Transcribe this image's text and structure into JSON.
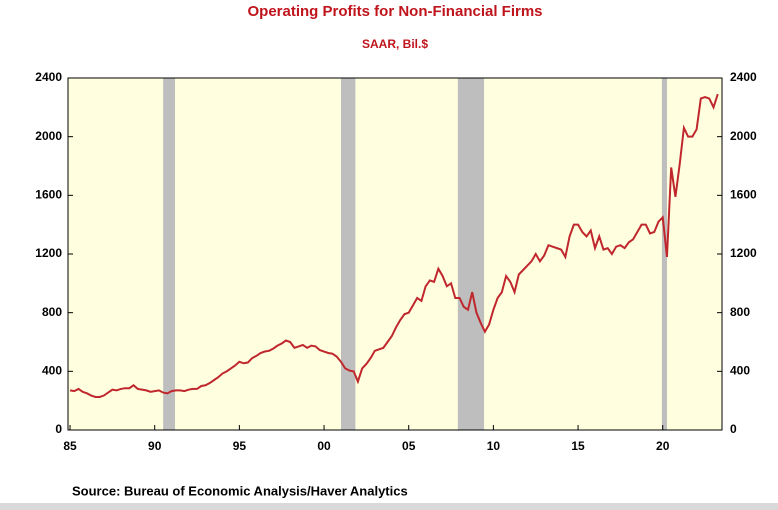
{
  "chart_data": {
    "type": "line",
    "title": "Operating Profits for Non-Financial Firms",
    "subtitle": "SAAR, Bil.$",
    "source": "Source:  Bureau of Economic Analysis/Haver Analytics",
    "xlim": [
      1984.88,
      2023.5
    ],
    "xticks": [
      {
        "value": 1985,
        "label": "85"
      },
      {
        "value": 1990,
        "label": "90"
      },
      {
        "value": 1995,
        "label": "95"
      },
      {
        "value": 2000,
        "label": "00"
      },
      {
        "value": 2005,
        "label": "05"
      },
      {
        "value": 2010,
        "label": "10"
      },
      {
        "value": 2015,
        "label": "15"
      },
      {
        "value": 2020,
        "label": "20"
      }
    ],
    "ylim": [
      0,
      2400
    ],
    "yticks": [
      0,
      400,
      800,
      1200,
      1600,
      2000,
      2400
    ],
    "y2lim": [
      0,
      2400
    ],
    "y2ticks": [
      0,
      400,
      800,
      1200,
      1600,
      2000,
      2400
    ],
    "recessions": [
      [
        1990.5,
        1991.2
      ],
      [
        2001.0,
        2001.85
      ],
      [
        2007.9,
        2009.45
      ],
      [
        2019.95,
        2020.25
      ]
    ],
    "recession_color": "#bebebe",
    "background": "#ffffe0",
    "x": [
      1985,
      1985.25,
      1985.5,
      1985.75,
      1986,
      1986.25,
      1986.5,
      1986.75,
      1987,
      1987.25,
      1987.5,
      1987.75,
      1988,
      1988.25,
      1988.5,
      1988.75,
      1989,
      1989.25,
      1989.5,
      1989.75,
      1990,
      1990.25,
      1990.5,
      1990.75,
      1991,
      1991.25,
      1991.5,
      1991.75,
      1992,
      1992.25,
      1992.5,
      1992.75,
      1993,
      1993.25,
      1993.5,
      1993.75,
      1994,
      1994.25,
      1994.5,
      1994.75,
      1995,
      1995.25,
      1995.5,
      1995.75,
      1996,
      1996.25,
      1996.5,
      1996.75,
      1997,
      1997.25,
      1997.5,
      1997.75,
      1998,
      1998.25,
      1998.5,
      1998.75,
      1999,
      1999.25,
      1999.5,
      1999.75,
      2000,
      2000.25,
      2000.5,
      2000.75,
      2001,
      2001.25,
      2001.5,
      2001.75,
      2002,
      2002.25,
      2002.5,
      2002.75,
      2003,
      2003.25,
      2003.5,
      2003.75,
      2004,
      2004.25,
      2004.5,
      2004.75,
      2005,
      2005.25,
      2005.5,
      2005.75,
      2006,
      2006.25,
      2006.5,
      2006.75,
      2007,
      2007.25,
      2007.5,
      2007.75,
      2008,
      2008.25,
      2008.5,
      2008.75,
      2009,
      2009.25,
      2009.5,
      2009.75,
      2010,
      2010.25,
      2010.5,
      2010.75,
      2011,
      2011.25,
      2011.5,
      2011.75,
      2012,
      2012.25,
      2012.5,
      2012.75,
      2013,
      2013.25,
      2013.5,
      2013.75,
      2014,
      2014.25,
      2014.5,
      2014.75,
      2015,
      2015.25,
      2015.5,
      2015.75,
      2016,
      2016.25,
      2016.5,
      2016.75,
      2017,
      2017.25,
      2017.5,
      2017.75,
      2018,
      2018.25,
      2018.5,
      2018.75,
      2019,
      2019.25,
      2019.5,
      2019.75,
      2020,
      2020.25,
      2020.5,
      2020.75,
      2021,
      2021.25,
      2021.5,
      2021.75,
      2022,
      2022.25,
      2022.5,
      2022.75,
      2023,
      2023.25
    ],
    "series": [
      {
        "color": "#c0272d",
        "values": [
          270,
          265,
          280,
          260,
          250,
          235,
          225,
          225,
          235,
          255,
          275,
          270,
          280,
          285,
          285,
          305,
          280,
          275,
          270,
          260,
          265,
          270,
          255,
          250,
          265,
          270,
          270,
          265,
          275,
          280,
          280,
          300,
          305,
          320,
          340,
          360,
          385,
          400,
          420,
          440,
          465,
          455,
          460,
          490,
          505,
          525,
          535,
          540,
          555,
          575,
          590,
          610,
          600,
          560,
          570,
          580,
          560,
          575,
          570,
          545,
          535,
          525,
          520,
          500,
          465,
          420,
          405,
          400,
          330,
          420,
          450,
          490,
          540,
          550,
          560,
          600,
          640,
          700,
          750,
          790,
          800,
          850,
          900,
          880,
          980,
          1020,
          1010,
          1100,
          1050,
          980,
          1000,
          900,
          900,
          840,
          820,
          940,
          800,
          730,
          670,
          720,
          820,
          900,
          940,
          1050,
          1010,
          940,
          1060,
          1090,
          1120,
          1150,
          1200,
          1150,
          1190,
          1260,
          1250,
          1240,
          1230,
          1180,
          1320,
          1400,
          1400,
          1350,
          1320,
          1360,
          1240,
          1320,
          1230,
          1240,
          1200,
          1250,
          1260,
          1240,
          1280,
          1300,
          1350,
          1400,
          1400,
          1340,
          1350,
          1420,
          1450,
          1180,
          1790,
          1590,
          1810,
          2060,
          2000,
          2000,
          2050,
          2260,
          2270,
          2260,
          2200,
          2290
        ]
      }
    ]
  }
}
